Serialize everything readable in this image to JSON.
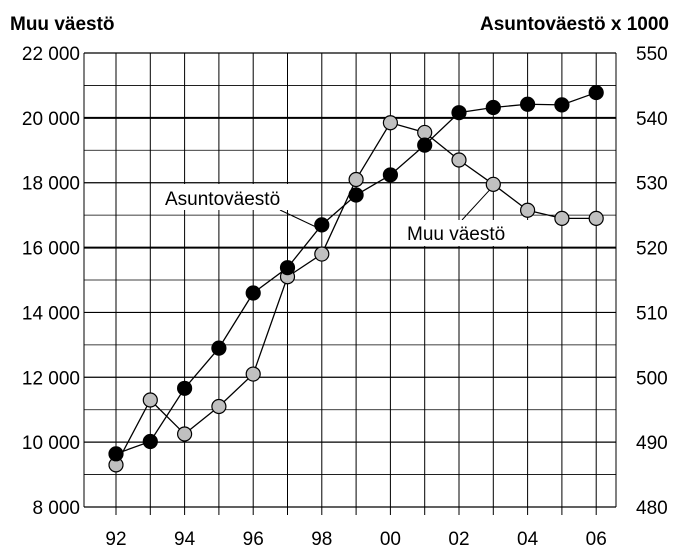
{
  "chart_data": {
    "type": "line",
    "x": [
      "92",
      "93",
      "94",
      "95",
      "96",
      "97",
      "98",
      "99",
      "00",
      "01",
      "02",
      "03",
      "04",
      "05",
      "06"
    ],
    "y_left_label": "Muu väestö",
    "y_right_label": "Asuntoväestö x 1000",
    "y_left_ticks": [
      "8 000",
      "10 000",
      "12 000",
      "14 000",
      "16 000",
      "18 000",
      "20 000",
      "22 000"
    ],
    "y_right_ticks": [
      "480",
      "490",
      "500",
      "510",
      "520",
      "530",
      "540",
      "550"
    ],
    "x_tick_labels": [
      "92",
      "94",
      "96",
      "98",
      "00",
      "02",
      "04",
      "06"
    ],
    "ylim_left": [
      8000,
      22000
    ],
    "ylim_right": [
      480,
      550
    ],
    "series": [
      {
        "name": "Asuntoväestö",
        "axis": "right",
        "marker_color": "#000000",
        "values": [
          488.2,
          490.1,
          498.3,
          504.5,
          513.0,
          516.9,
          523.5,
          528.1,
          531.2,
          535.8,
          540.8,
          541.6,
          542.1,
          542.0,
          543.9
        ]
      },
      {
        "name": "Muu väestö",
        "axis": "left",
        "marker_color": "#c0c0c0",
        "values": [
          9300,
          11300,
          10250,
          11100,
          12100,
          15100,
          15800,
          18100,
          19850,
          19550,
          18700,
          17950,
          17150,
          16900,
          16900
        ]
      }
    ],
    "annotations": [
      {
        "text": "Asuntoväestö",
        "series": "Asuntoväestö"
      },
      {
        "text": "Muu väestö",
        "series": "Muu väestö"
      }
    ],
    "grid": true
  }
}
